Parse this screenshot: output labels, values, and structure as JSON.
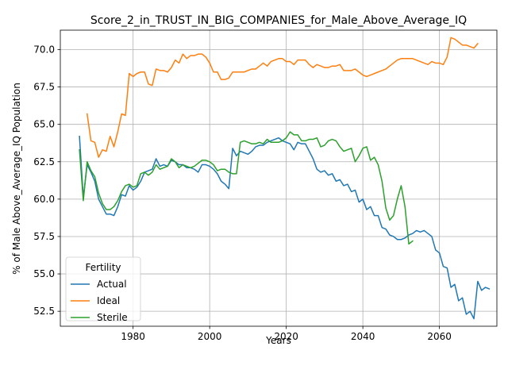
{
  "chart_data": {
    "type": "line",
    "title": "Score_2_in_TRUST_IN_BIG_COMPANIES_for_Male_Above_Average_IQ",
    "xlabel": "Years",
    "ylabel": "% of Male Above_Average_IQ Population",
    "xlim": [
      2061,
      2075
    ],
    "ylim": [
      51.5,
      71.3
    ],
    "x_ticks": [
      1980,
      2000,
      2020,
      2040,
      2060
    ],
    "y_ticks": [
      52.5,
      55.0,
      57.5,
      60.0,
      62.5,
      65.0,
      67.5,
      70.0
    ],
    "x_tick_labels": [
      "1980",
      "2000",
      "2020",
      "2040",
      "2060"
    ],
    "y_tick_labels": [
      "52.5",
      "55.0",
      "57.5",
      "60.0",
      "62.5",
      "65.0",
      "67.5",
      "70.0"
    ],
    "grid": true,
    "legend": {
      "title": "Fertility",
      "placement": "lower-left"
    },
    "x_start": 1966,
    "series": [
      {
        "name": "Actual",
        "color": "#1f77b4",
        "x_start": 1966,
        "values": [
          64.2,
          60.1,
          62.3,
          61.8,
          61.2,
          60.0,
          59.5,
          59.0,
          59.0,
          58.9,
          59.5,
          60.3,
          60.2,
          60.9,
          60.6,
          60.8,
          61.2,
          61.8,
          61.9,
          62.0,
          62.7,
          62.2,
          62.3,
          62.2,
          62.6,
          62.5,
          62.3,
          62.3,
          62.1,
          62.1,
          62.0,
          61.8,
          62.3,
          62.3,
          62.2,
          62.0,
          61.7,
          61.2,
          61.0,
          60.7,
          63.4,
          62.9,
          63.2,
          63.1,
          63.0,
          63.2,
          63.5,
          63.6,
          63.6,
          63.8,
          63.9,
          64.0,
          64.1,
          63.9,
          63.8,
          63.7,
          63.3,
          63.8,
          63.7,
          63.7,
          63.2,
          62.7,
          62.0,
          61.8,
          61.9,
          61.6,
          61.7,
          61.2,
          61.3,
          60.9,
          61.0,
          60.5,
          60.6,
          59.8,
          60.0,
          59.3,
          59.5,
          58.9,
          58.9,
          58.1,
          58.0,
          57.6,
          57.5,
          57.3,
          57.3,
          57.4,
          57.6,
          57.7,
          57.9,
          57.8,
          57.9,
          57.7,
          57.5,
          56.6,
          56.4,
          55.5,
          55.4,
          54.1,
          54.3,
          53.2,
          53.4,
          52.3,
          52.5,
          52.0,
          54.5,
          53.9,
          54.1,
          54.0
        ]
      },
      {
        "name": "Ideal",
        "color": "#ff7f0e",
        "x_start": 1968,
        "values": [
          65.7,
          63.9,
          63.8,
          62.8,
          63.3,
          63.2,
          64.2,
          63.5,
          64.5,
          65.7,
          65.6,
          68.4,
          68.2,
          68.4,
          68.5,
          68.5,
          67.7,
          67.6,
          68.7,
          68.6,
          68.6,
          68.5,
          68.8,
          69.3,
          69.1,
          69.7,
          69.4,
          69.6,
          69.6,
          69.7,
          69.7,
          69.5,
          69.1,
          68.5,
          68.5,
          68.0,
          68.0,
          68.1,
          68.5,
          68.5,
          68.5,
          68.5,
          68.6,
          68.7,
          68.7,
          68.9,
          69.1,
          68.9,
          69.2,
          69.3,
          69.4,
          69.4,
          69.2,
          69.2,
          69.0,
          69.3,
          69.3,
          69.3,
          69.0,
          68.8,
          69.0,
          68.9,
          68.8,
          68.8,
          68.9,
          68.9,
          69.0,
          68.6,
          68.6,
          68.6,
          68.7,
          68.5,
          68.3,
          68.2,
          68.3,
          68.4,
          68.5,
          68.6,
          68.7,
          68.9,
          69.1,
          69.3,
          69.4,
          69.4,
          69.4,
          69.4,
          69.3,
          69.2,
          69.1,
          69.0,
          69.2,
          69.1,
          69.1,
          69.0,
          69.5,
          70.8,
          70.7,
          70.5,
          70.3,
          70.3,
          70.2,
          70.1,
          70.4
        ]
      },
      {
        "name": "Sterile",
        "color": "#2ca02c",
        "x_start": 1966,
        "values": [
          63.3,
          59.9,
          62.5,
          61.9,
          61.5,
          60.4,
          59.7,
          59.3,
          59.3,
          59.5,
          59.9,
          60.5,
          60.9,
          61.0,
          60.8,
          60.9,
          61.7,
          61.8,
          61.6,
          61.8,
          62.3,
          62.0,
          62.1,
          62.2,
          62.7,
          62.5,
          62.1,
          62.3,
          62.2,
          62.1,
          62.2,
          62.4,
          62.6,
          62.6,
          62.5,
          62.3,
          61.9,
          62.0,
          62.0,
          61.8,
          61.7,
          61.7,
          63.8,
          63.9,
          63.8,
          63.7,
          63.7,
          63.8,
          63.7,
          64.0,
          63.8,
          63.8,
          63.8,
          63.9,
          64.1,
          64.5,
          64.3,
          64.3,
          63.9,
          63.9,
          64.0,
          64.0,
          64.1,
          63.5,
          63.6,
          63.9,
          64.0,
          63.9,
          63.5,
          63.2,
          63.3,
          63.4,
          62.5,
          62.9,
          63.4,
          63.5,
          62.6,
          62.8,
          62.3,
          61.2,
          59.4,
          58.6,
          58.9,
          60.0,
          60.9,
          59.5,
          57.0,
          57.2
        ]
      }
    ]
  }
}
